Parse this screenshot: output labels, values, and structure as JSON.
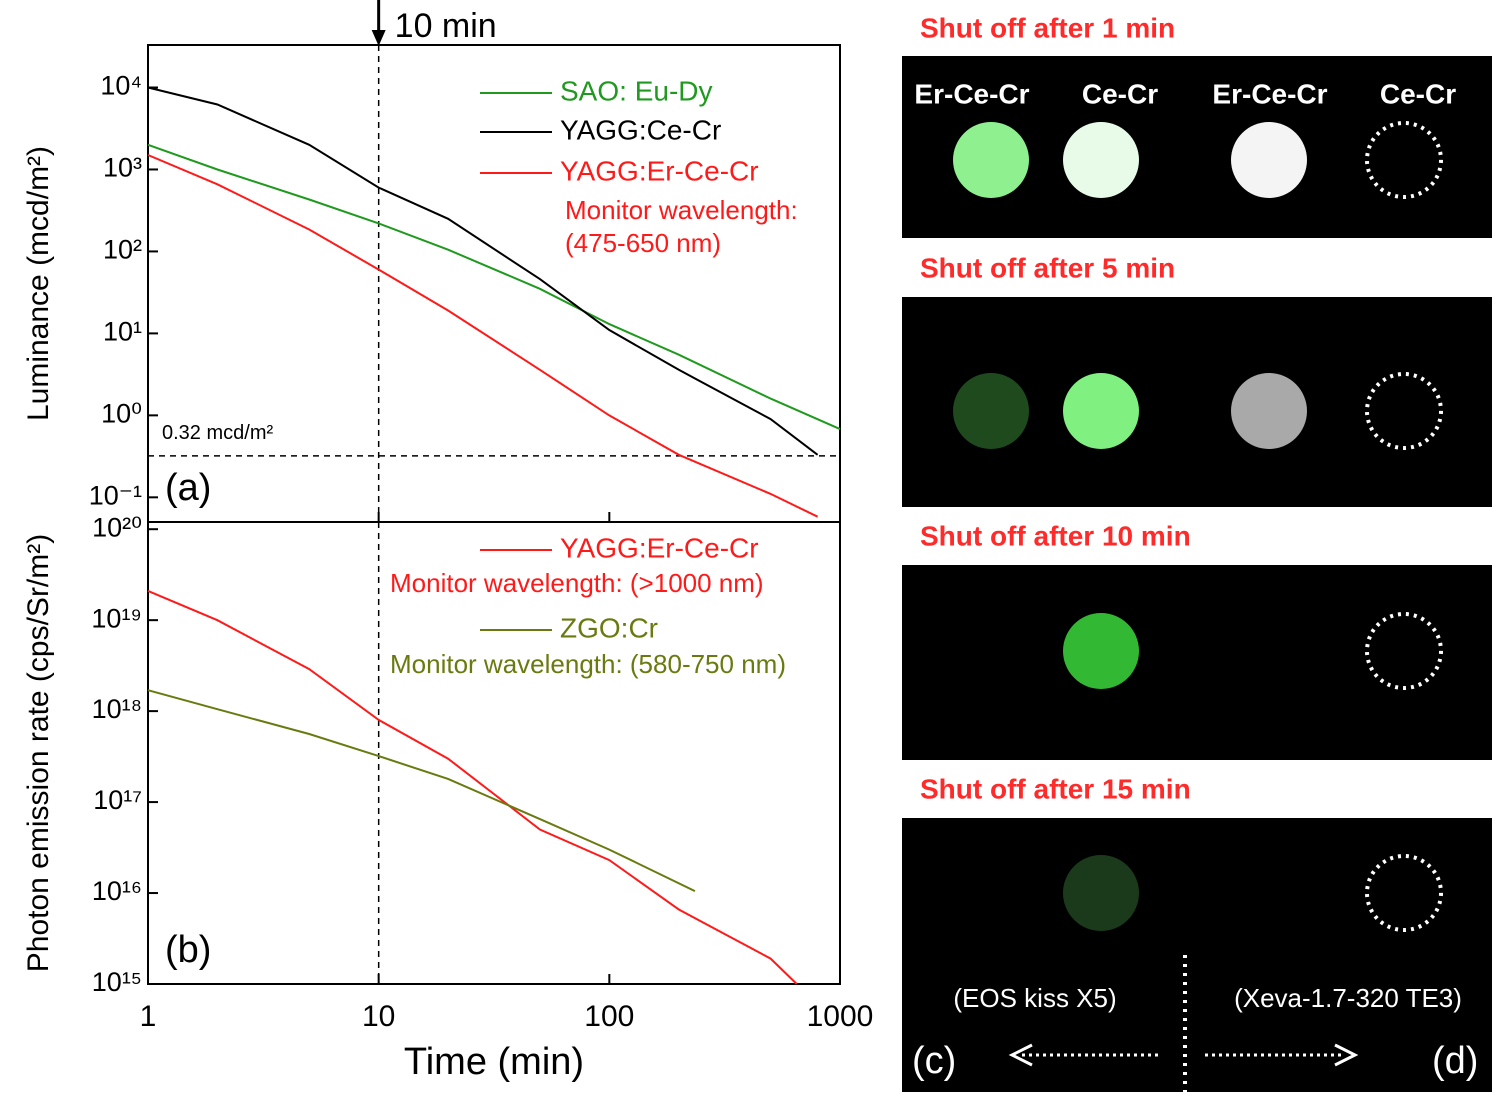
{
  "chart_data": [
    {
      "type": "line",
      "log_x": true,
      "log_y": true,
      "ylabel": "Luminance (mcd/m²)",
      "xlim": [
        1,
        1000
      ],
      "xticks": [
        1,
        10,
        100,
        1000
      ],
      "ylim": [
        0.05,
        33000
      ],
      "yticks": [
        {
          "value": 0.1,
          "label": "10⁻¹"
        },
        {
          "value": 1,
          "label": "10⁰"
        },
        {
          "value": 10,
          "label": "10¹"
        },
        {
          "value": 100,
          "label": "10²"
        },
        {
          "value": 1000,
          "label": "10³"
        },
        {
          "value": 10000,
          "label": "10⁴"
        }
      ],
      "vline": 10,
      "vline_label": "10 min",
      "hline": 0.32,
      "hline_label": "0.32 mcd/m²",
      "panel_label": "(a)",
      "series": [
        {
          "name": "SAO: Eu-Dy",
          "color": "#1f9a1f",
          "x": [
            1,
            2,
            5,
            10,
            20,
            50,
            100,
            200,
            500,
            1000
          ],
          "values": [
            2000,
            1000,
            430,
            220,
            105,
            35,
            13,
            5.5,
            1.6,
            0.68
          ]
        },
        {
          "name": "YAGG:Ce-Cr",
          "color": "#000000",
          "x": [
            1,
            2,
            5,
            10,
            20,
            50,
            100,
            200,
            500,
            800
          ],
          "values": [
            10000,
            6200,
            2000,
            600,
            250,
            46,
            11,
            3.6,
            0.9,
            0.33
          ]
        },
        {
          "name": "YAGG:Er-Ce-Cr",
          "color": "#ff1a1a",
          "notes": [
            "Monitor wavelength:",
            "(475-650 nm)"
          ],
          "x": [
            1,
            2,
            5,
            10,
            20,
            50,
            100,
            200,
            500,
            800
          ],
          "values": [
            1500,
            660,
            185,
            60,
            19,
            3.6,
            1.0,
            0.33,
            0.11,
            0.058
          ]
        }
      ]
    },
    {
      "type": "line",
      "log_x": true,
      "log_y": true,
      "ylabel": "Photon emission rate (cps/Sr/m²)",
      "xlabel": "Time (min)",
      "xlim": [
        1,
        1000
      ],
      "xticks": [
        1,
        10,
        100,
        1000
      ],
      "ylim": [
        1000000000000000.0,
        1.2e+20
      ],
      "yticks": [
        {
          "value": 1000000000000000.0,
          "label": "10¹⁵"
        },
        {
          "value": 1e+16,
          "label": "10¹⁶"
        },
        {
          "value": 1e+17,
          "label": "10¹⁷"
        },
        {
          "value": 1e+18,
          "label": "10¹⁸"
        },
        {
          "value": 1e+19,
          "label": "10¹⁹"
        },
        {
          "value": 1e+20,
          "label": "10²⁰"
        }
      ],
      "vline": 10,
      "panel_label": "(b)",
      "series": [
        {
          "name": "YAGG:Er-Ce-Cr",
          "color": "#ff1a1a",
          "notes": [
            "Monitor wavelength: (>1000 nm)"
          ],
          "x": [
            1,
            2,
            5,
            10,
            20,
            50,
            100,
            200,
            500,
            650
          ],
          "values": [
            2.1e+19,
            1e+19,
            2.9e+18,
            8e+17,
            3e+17,
            5e+16,
            2.3e+16,
            6600000000000000.0,
            1900000000000000.0,
            1000000000000000.0
          ]
        },
        {
          "name": "ZGO:Cr",
          "color": "#6b7a10",
          "notes": [
            "Monitor wavelength: (580-750 nm)"
          ],
          "x": [
            1,
            2,
            5,
            10,
            20,
            50,
            100,
            235
          ],
          "values": [
            1.7e+18,
            1.05e+18,
            5.6e+17,
            3.2e+17,
            1.8e+17,
            6.5e+16,
            3e+16,
            1.05e+16
          ]
        }
      ]
    }
  ],
  "images": {
    "panels": [
      {
        "title": "Shut off after 1 min",
        "labels": [
          "Er-Ce-Cr",
          "Ce-Cr",
          "Er-Ce-Cr",
          "Ce-Cr"
        ]
      },
      {
        "title": "Shut off after 5 min"
      },
      {
        "title": "Shut off after 10 min"
      },
      {
        "title": "Shut off after 15 min"
      }
    ],
    "cameras": [
      "(EOS kiss X5)",
      "(Xeva-1.7-320 TE3)"
    ],
    "panel_labels": [
      "(c)",
      "(d)"
    ]
  }
}
